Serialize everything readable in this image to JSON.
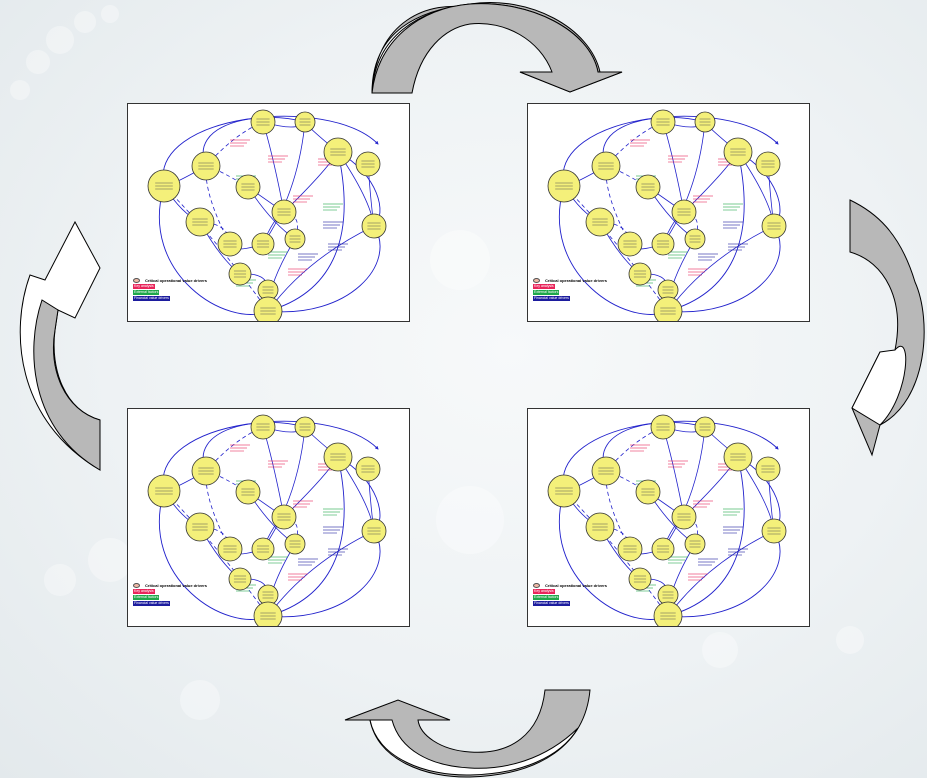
{
  "panels": [
    {
      "id": "top-left"
    },
    {
      "id": "top-right"
    },
    {
      "id": "bottom-left"
    },
    {
      "id": "bottom-right"
    }
  ],
  "legend": {
    "critical": "Critical operational value drivers",
    "items": [
      {
        "label": "Key analysis",
        "color": "#e8245a"
      },
      {
        "label": "External factors",
        "color": "#1fa84a"
      },
      {
        "label": "Financial value drivers",
        "color": "#1c1c9e"
      }
    ]
  },
  "colors": {
    "node_fill": "#f4f07a",
    "edge": "#2222cc",
    "arrow_dark": "#b8b8b8",
    "arrow_light": "#ffffff"
  }
}
